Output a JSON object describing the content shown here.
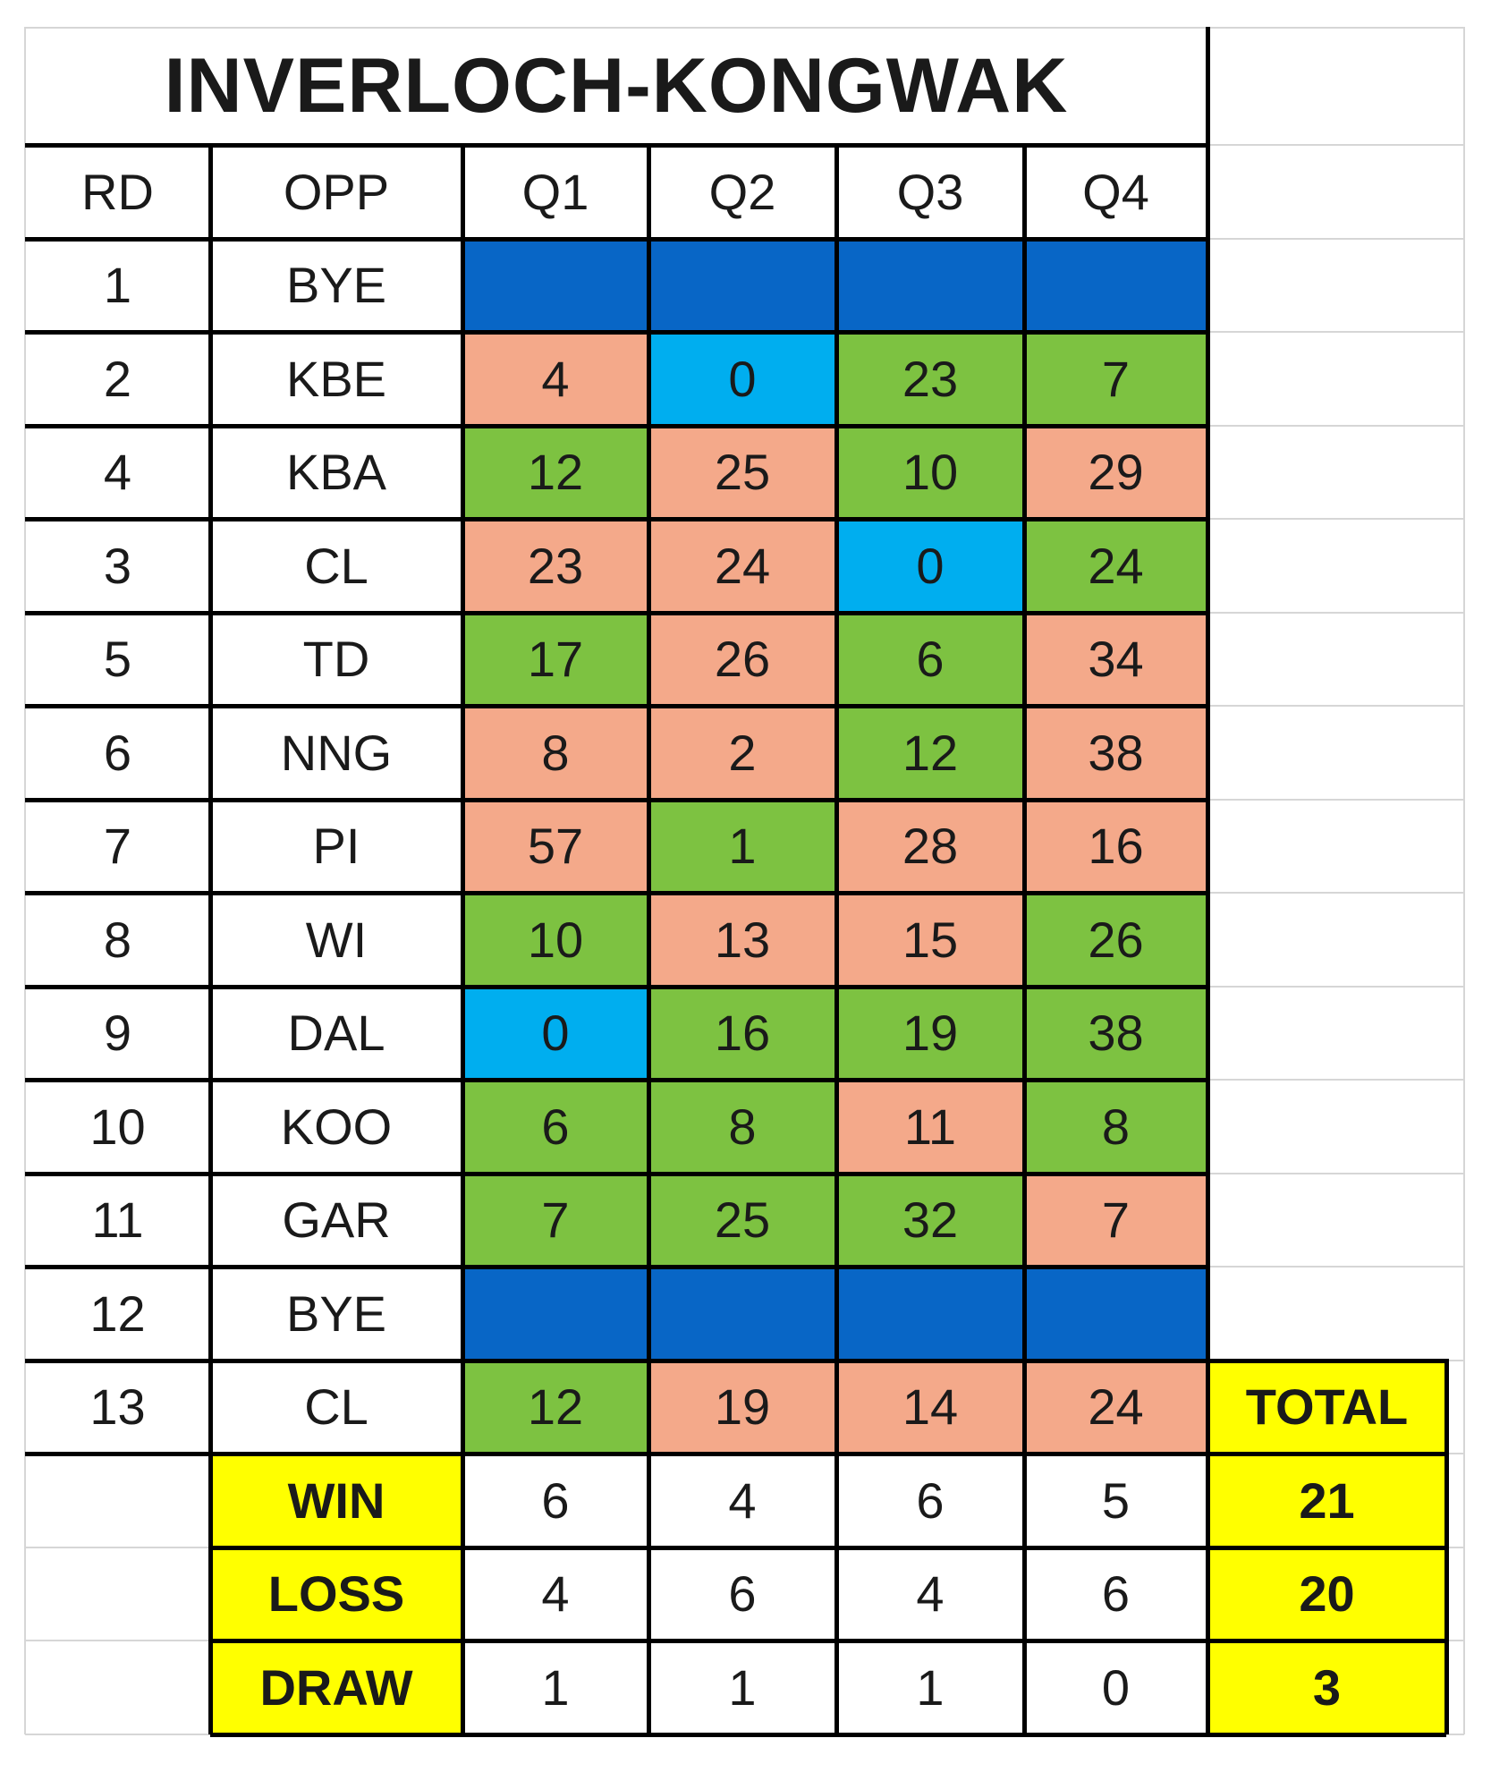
{
  "title": "INVERLOCH-KONGWAK",
  "headers": [
    "RD",
    "OPP",
    "Q1",
    "Q2",
    "Q3",
    "Q4"
  ],
  "colors": {
    "win": "#7dc241",
    "loss": "#f4a98a",
    "draw": "#00aeef",
    "bye": "#0866c6",
    "summary": "#ffff00",
    "grid": "#d6d6d6"
  },
  "rows": [
    {
      "rd": "1",
      "opp": "BYE",
      "bye": true
    },
    {
      "rd": "2",
      "opp": "KBE",
      "q": [
        "4",
        "0",
        "23",
        "7"
      ],
      "r": [
        "L",
        "D",
        "W",
        "W"
      ]
    },
    {
      "rd": "4",
      "opp": "KBA",
      "q": [
        "12",
        "25",
        "10",
        "29"
      ],
      "r": [
        "W",
        "L",
        "W",
        "L"
      ]
    },
    {
      "rd": "3",
      "opp": "CL",
      "q": [
        "23",
        "24",
        "0",
        "24"
      ],
      "r": [
        "L",
        "L",
        "D",
        "W"
      ]
    },
    {
      "rd": "5",
      "opp": "TD",
      "q": [
        "17",
        "26",
        "6",
        "34"
      ],
      "r": [
        "W",
        "L",
        "W",
        "L"
      ]
    },
    {
      "rd": "6",
      "opp": "NNG",
      "q": [
        "8",
        "2",
        "12",
        "38"
      ],
      "r": [
        "L",
        "L",
        "W",
        "L"
      ]
    },
    {
      "rd": "7",
      "opp": "PI",
      "q": [
        "57",
        "1",
        "28",
        "16"
      ],
      "r": [
        "L",
        "W",
        "L",
        "L"
      ]
    },
    {
      "rd": "8",
      "opp": "WI",
      "q": [
        "10",
        "13",
        "15",
        "26"
      ],
      "r": [
        "W",
        "L",
        "L",
        "W"
      ]
    },
    {
      "rd": "9",
      "opp": "DAL",
      "q": [
        "0",
        "16",
        "19",
        "38"
      ],
      "r": [
        "D",
        "W",
        "W",
        "W"
      ]
    },
    {
      "rd": "10",
      "opp": "KOO",
      "q": [
        "6",
        "8",
        "11",
        "8"
      ],
      "r": [
        "W",
        "W",
        "L",
        "W"
      ]
    },
    {
      "rd": "11",
      "opp": "GAR",
      "q": [
        "7",
        "25",
        "32",
        "7"
      ],
      "r": [
        "W",
        "W",
        "W",
        "L"
      ]
    },
    {
      "rd": "12",
      "opp": "BYE",
      "bye": true
    },
    {
      "rd": "13",
      "opp": "CL",
      "q": [
        "12",
        "19",
        "14",
        "24"
      ],
      "r": [
        "W",
        "L",
        "L",
        "L"
      ]
    }
  ],
  "total_label": "TOTAL",
  "summary": [
    {
      "label": "WIN",
      "q": [
        "6",
        "4",
        "6",
        "5"
      ],
      "total": "21"
    },
    {
      "label": "LOSS",
      "q": [
        "4",
        "6",
        "4",
        "6"
      ],
      "total": "20"
    },
    {
      "label": "DRAW",
      "q": [
        "1",
        "1",
        "1",
        "0"
      ],
      "total": "3"
    }
  ]
}
